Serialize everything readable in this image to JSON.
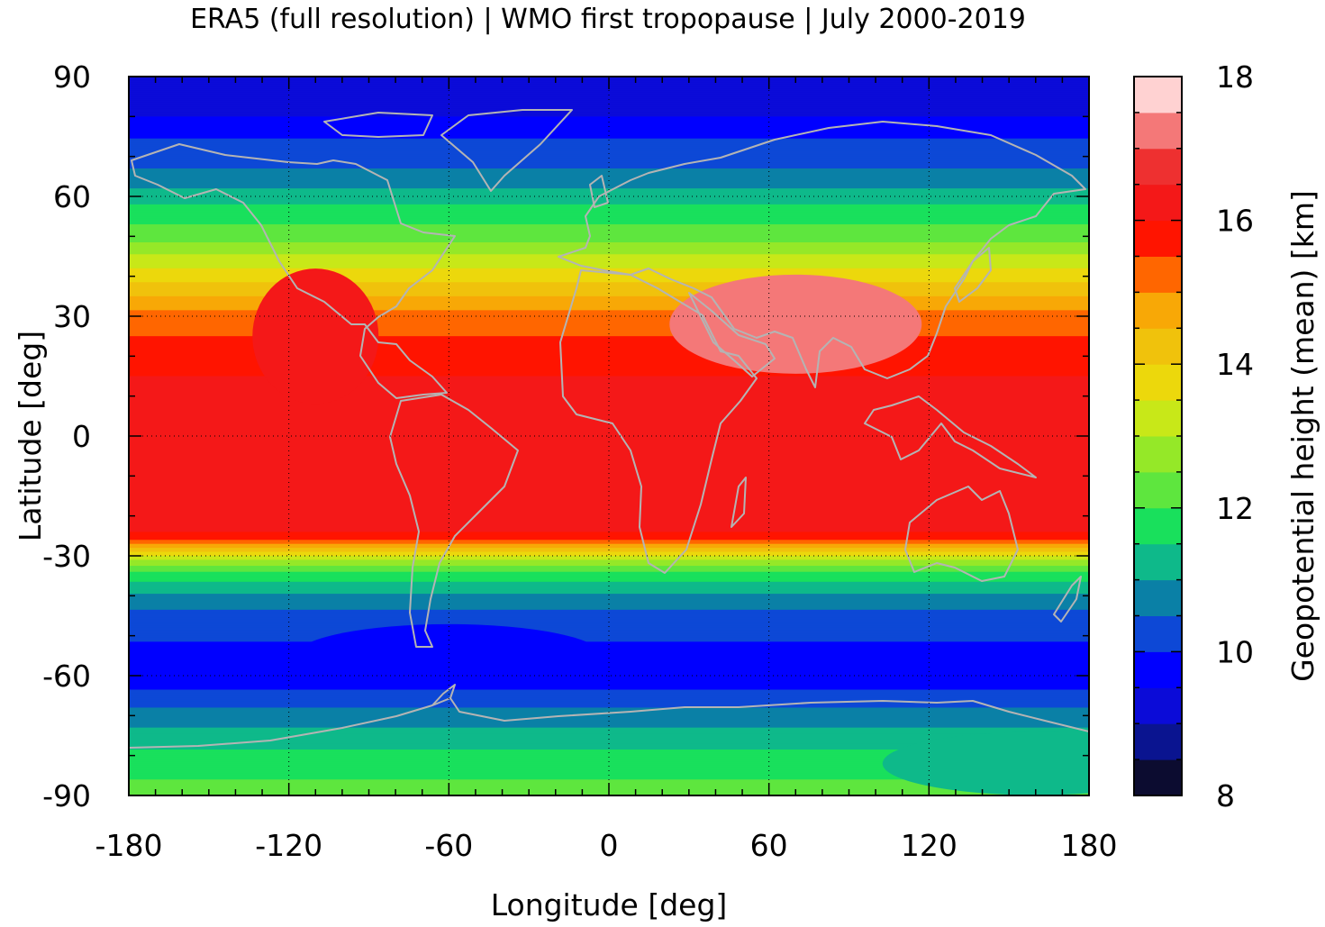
{
  "title": "ERA5 (full resolution) | WMO first tropopause | July 2000-2019",
  "chart_data": {
    "type": "heatmap",
    "title": "ERA5 (full resolution) | WMO first tropopause | July 2000-2019",
    "xlabel": "Longitude [deg]",
    "ylabel": "Latitude [deg]",
    "xlim": [
      -180,
      180
    ],
    "ylim": [
      -90,
      90
    ],
    "x_ticks": [
      -180,
      -120,
      -60,
      0,
      60,
      120,
      180
    ],
    "y_ticks": [
      90,
      60,
      30,
      0,
      -30,
      -60,
      -90
    ],
    "x_tick_labels": [
      "-180",
      "-120",
      "-60",
      "0",
      "60",
      "120",
      "180"
    ],
    "y_tick_labels": [
      "90",
      "60",
      "30",
      "0",
      "-30",
      "-60",
      "-90"
    ],
    "grid": true,
    "colorbar": {
      "label": "Geopotential height (mean) [km]",
      "range": [
        8,
        18
      ],
      "tick_values": [
        18,
        16,
        14,
        12,
        10,
        8
      ],
      "tick_labels": [
        "18",
        "16",
        "14",
        "12",
        "10",
        "8"
      ],
      "levels": [
        8,
        8.5,
        9,
        9.5,
        10,
        10.5,
        11,
        11.5,
        12,
        12.5,
        13,
        13.5,
        14,
        14.5,
        15,
        15.5,
        16,
        16.5,
        17,
        17.5,
        18
      ],
      "colors": [
        "#0c0c30",
        "#0a1490",
        "#0b0bd8",
        "#0000ff",
        "#0d48d6",
        "#0a80a6",
        "#0eb98a",
        "#19e05c",
        "#5ee63e",
        "#95e828",
        "#c8e818",
        "#ecd80c",
        "#f0c20c",
        "#f8a806",
        "#ff6600",
        "#ff1400",
        "#f41818",
        "#ee3030",
        "#f47878",
        "#ffd2d2"
      ]
    },
    "zonal_profile_km": {
      "lat": [
        -90,
        -82,
        -75,
        -68,
        -62,
        -55,
        -48,
        -42,
        -38,
        -34,
        -31,
        -28,
        -26,
        -24,
        0,
        15,
        20,
        25,
        30,
        35,
        42,
        50,
        58,
        65,
        72,
        80,
        90
      ],
      "height": [
        12.2,
        11.8,
        11.2,
        10.5,
        9.8,
        9.8,
        10.2,
        10.6,
        11.2,
        12.0,
        13.0,
        14.5,
        15.5,
        16.0,
        16.0,
        16.0,
        15.8,
        15.5,
        15.2,
        14.5,
        13.5,
        12.3,
        11.5,
        10.6,
        10.2,
        9.5,
        9.3
      ]
    },
    "anomalies_km": [
      {
        "lon": 75,
        "lat": 30,
        "height": 17.5
      },
      {
        "lon": 70,
        "lat": 28,
        "height": 17.0
      },
      {
        "lon": -110,
        "lat": 25,
        "height": 16.0
      },
      {
        "lon": 160,
        "lat": -82,
        "height": 11.0
      },
      {
        "lon": -60,
        "lat": -55,
        "height": 9.8
      }
    ]
  }
}
